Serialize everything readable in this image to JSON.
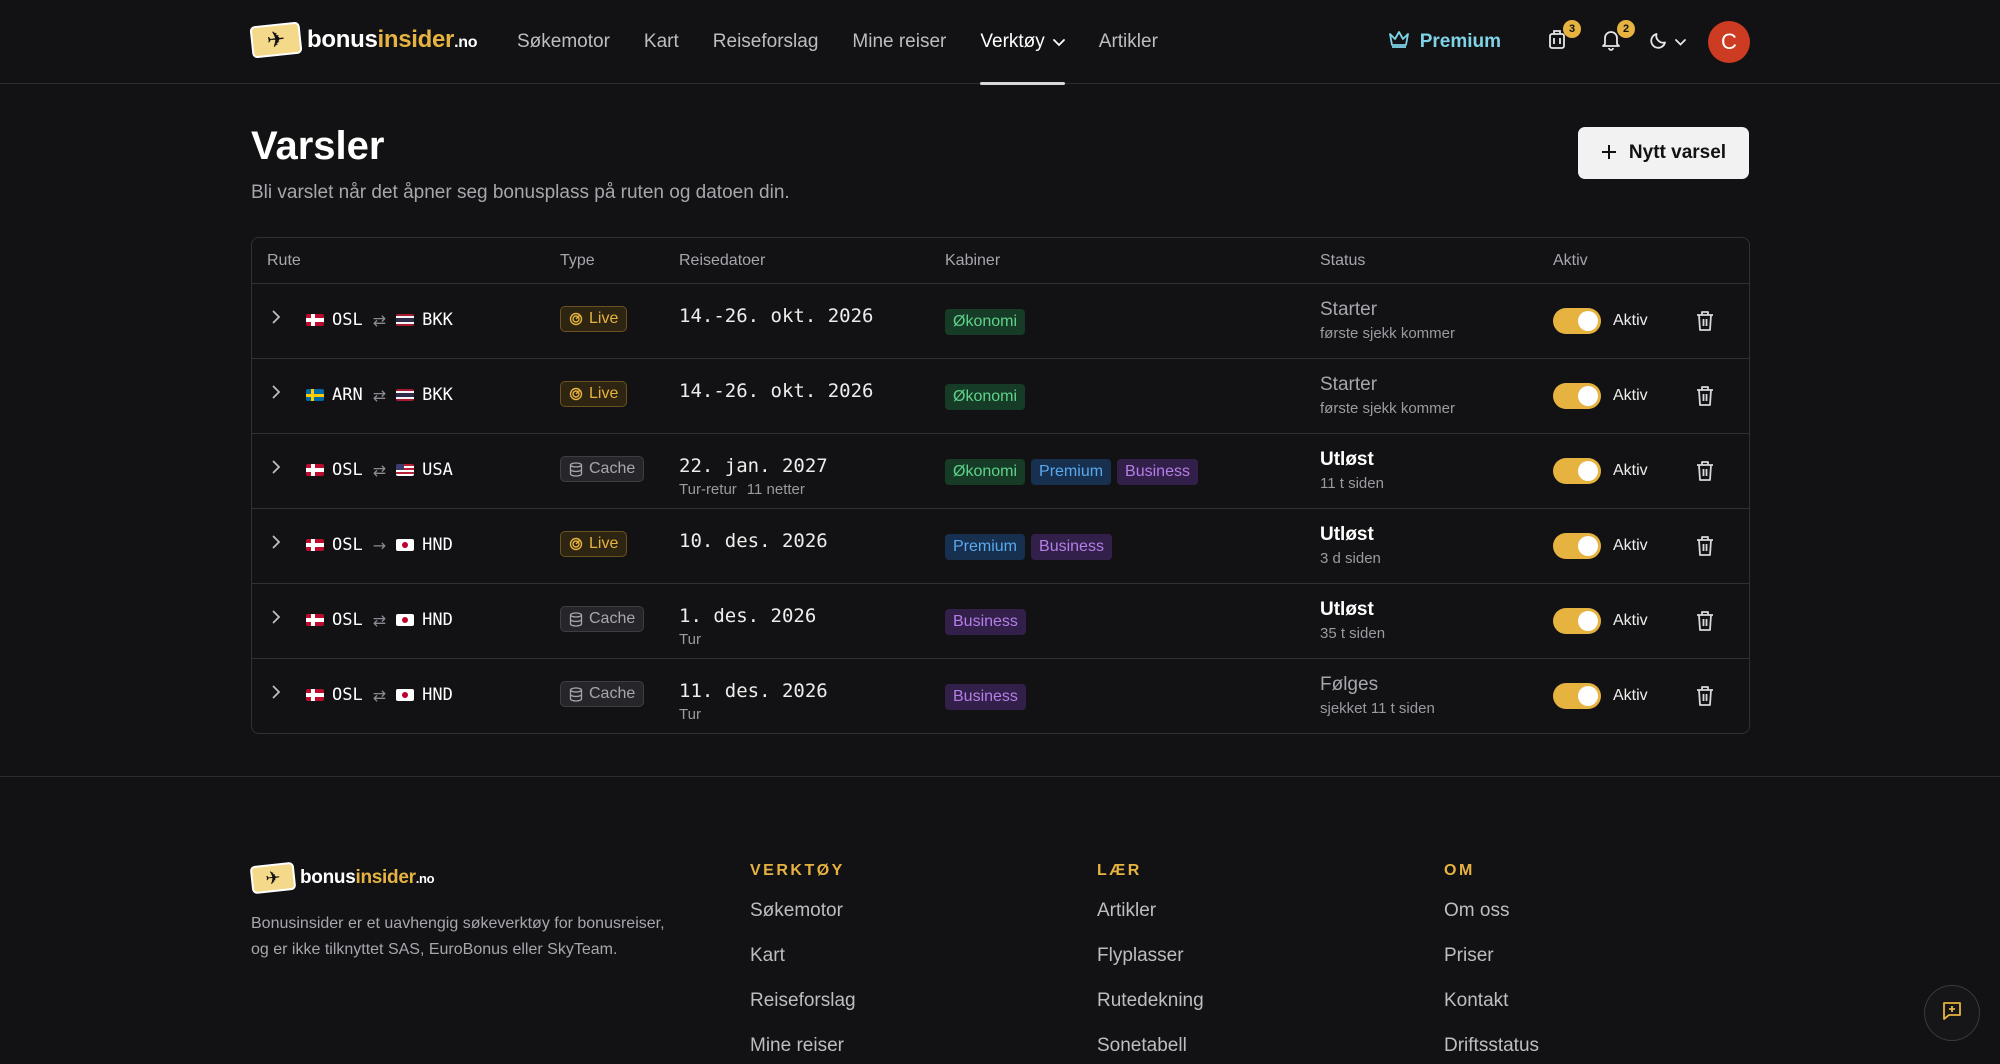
{
  "header": {
    "logo": {
      "brand_main": "bonus",
      "brand_accent": "insider",
      "brand_tld": ".no"
    },
    "nav": [
      {
        "label": "Søkemotor"
      },
      {
        "label": "Kart"
      },
      {
        "label": "Reiseforslag"
      },
      {
        "label": "Mine reiser"
      },
      {
        "label": "Verktøy",
        "active": true,
        "has_dropdown": true
      },
      {
        "label": "Artikler"
      }
    ],
    "premium_label": "Premium",
    "trips_badge": "3",
    "notifications_badge": "2",
    "avatar_initial": "C"
  },
  "page": {
    "title": "Varsler",
    "subtitle": "Bli varslet når det åpner seg bonusplass på ruten og datoen din.",
    "new_alert_label": "Nytt varsel"
  },
  "table": {
    "headers": {
      "route": "Rute",
      "type": "Type",
      "dates": "Reisedatoer",
      "cabins": "Kabiner",
      "status": "Status",
      "active": "Aktiv"
    },
    "rows": [
      {
        "from": "OSL",
        "from_flag": "no",
        "arrow": "⇄",
        "to": "BKK",
        "to_flag": "th",
        "type": "Live",
        "date": "14.-26. okt. 2026",
        "date_sub": "",
        "nights": "",
        "cabins": [
          {
            "label": "Økonomi",
            "kind": "economy"
          }
        ],
        "status": "Starter",
        "status_strong": false,
        "status_sub": "første sjekk kommer",
        "active_label": "Aktiv"
      },
      {
        "from": "ARN",
        "from_flag": "se",
        "arrow": "⇄",
        "to": "BKK",
        "to_flag": "th",
        "type": "Live",
        "date": "14.-26. okt. 2026",
        "date_sub": "",
        "nights": "",
        "cabins": [
          {
            "label": "Økonomi",
            "kind": "economy"
          }
        ],
        "status": "Starter",
        "status_strong": false,
        "status_sub": "første sjekk kommer",
        "active_label": "Aktiv"
      },
      {
        "from": "OSL",
        "from_flag": "no",
        "arrow": "⇄",
        "to": "USA",
        "to_flag": "us",
        "type": "Cache",
        "date": "22. jan. 2027",
        "date_sub": "Tur-retur",
        "nights": "11 netter",
        "cabins": [
          {
            "label": "Økonomi",
            "kind": "economy"
          },
          {
            "label": "Premium",
            "kind": "premium"
          },
          {
            "label": "Business",
            "kind": "business"
          }
        ],
        "status": "Utløst",
        "status_strong": true,
        "status_sub": "11 t siden",
        "active_label": "Aktiv"
      },
      {
        "from": "OSL",
        "from_flag": "no",
        "arrow": "→",
        "to": "HND",
        "to_flag": "jp",
        "type": "Live",
        "date": "10. des. 2026",
        "date_sub": "",
        "nights": "",
        "cabins": [
          {
            "label": "Premium",
            "kind": "premium"
          },
          {
            "label": "Business",
            "kind": "business"
          }
        ],
        "status": "Utløst",
        "status_strong": true,
        "status_sub": "3 d siden",
        "active_label": "Aktiv"
      },
      {
        "from": "OSL",
        "from_flag": "no",
        "arrow": "⇄",
        "to": "HND",
        "to_flag": "jp",
        "type": "Cache",
        "date": "1. des. 2026",
        "date_sub": "Tur",
        "nights": "",
        "cabins": [
          {
            "label": "Business",
            "kind": "business"
          }
        ],
        "status": "Utløst",
        "status_strong": true,
        "status_sub": "35 t siden",
        "active_label": "Aktiv"
      },
      {
        "from": "OSL",
        "from_flag": "no",
        "arrow": "⇄",
        "to": "HND",
        "to_flag": "jp",
        "type": "Cache",
        "date": "11. des. 2026",
        "date_sub": "Tur",
        "nights": "",
        "cabins": [
          {
            "label": "Business",
            "kind": "business"
          }
        ],
        "status": "Følges",
        "status_strong": false,
        "status_sub": "sjekket 11 t siden",
        "active_label": "Aktiv"
      }
    ]
  },
  "footer": {
    "description": "Bonusinsider er et uavhengig søkeverktøy for bonusreiser, og er ikke tilknyttet SAS, EuroBonus eller SkyTeam.",
    "columns": [
      {
        "title": "VERKTØY",
        "links": [
          "Søkemotor",
          "Kart",
          "Reiseforslag",
          "Mine reiser"
        ]
      },
      {
        "title": "LÆR",
        "links": [
          "Artikler",
          "Flyplasser",
          "Rutedekning",
          "Sonetabell"
        ]
      },
      {
        "title": "OM",
        "links": [
          "Om oss",
          "Priser",
          "Kontakt",
          "Driftsstatus"
        ]
      }
    ]
  },
  "colors": {
    "accent": "#e6b340",
    "premium_link": "#7fd3e6",
    "economy": "#5fd38a",
    "premium": "#5aa9ee",
    "business": "#b57ee8",
    "avatar": "#cc3b22"
  }
}
